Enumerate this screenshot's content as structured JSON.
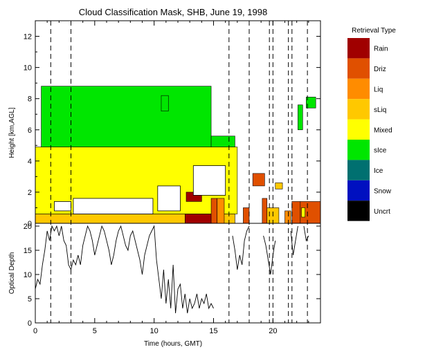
{
  "chart_data": [
    {
      "type": "heatmap",
      "title": "Cloud Classification Mask, SHB, June 19, 1998",
      "xlabel": "",
      "ylabel": "Height [km,AGL]",
      "xlim": [
        0,
        24
      ],
      "ylim": [
        0,
        13
      ],
      "yticks": [
        "0",
        "2",
        "4",
        "6",
        "8",
        "10",
        "12"
      ],
      "grid": false,
      "legend": {
        "title": "Retrieval Type",
        "placement": "right",
        "entries": [
          {
            "label": "Rain",
            "color": "#a00000"
          },
          {
            "label": "Driz",
            "color": "#e05000"
          },
          {
            "label": "Liq",
            "color": "#ff8c00"
          },
          {
            "label": "sLiq",
            "color": "#ffc800"
          },
          {
            "label": "Mixed",
            "color": "#ffff00"
          },
          {
            "label": "sIce",
            "color": "#00e600"
          },
          {
            "label": "Ice",
            "color": "#007070"
          },
          {
            "label": "Snow",
            "color": "#0010c0"
          },
          {
            "label": "Uncrt",
            "color": "#000000"
          }
        ]
      },
      "regions": [
        {
          "class": "sLiq",
          "color": "#ffc800",
          "t0": 0.0,
          "t1": 16.8,
          "h0": 0.0,
          "h1": 0.6
        },
        {
          "class": "Mixed",
          "color": "#ffff00",
          "t0": 0.0,
          "t1": 17.0,
          "h0": 0.6,
          "h1": 4.9
        },
        {
          "class": "sIce",
          "color": "#00e600",
          "t0": 0.5,
          "t1": 14.8,
          "h0": 4.9,
          "h1": 8.8
        },
        {
          "class": "sIce",
          "color": "#00e600",
          "t0": 14.8,
          "t1": 16.8,
          "h0": 4.9,
          "h1": 5.6
        },
        {
          "class": "sIce",
          "color": "#00e600",
          "t0": 10.6,
          "t1": 11.2,
          "h0": 7.2,
          "h1": 8.2
        },
        {
          "class": "sIce",
          "color": "#00e600",
          "t0": 22.1,
          "t1": 22.5,
          "h0": 6.0,
          "h1": 7.6
        },
        {
          "class": "sIce",
          "color": "#00e600",
          "t0": 22.8,
          "t1": 23.6,
          "h0": 7.4,
          "h1": 8.1
        },
        {
          "class": "Rain",
          "color": "#a00000",
          "t0": 12.6,
          "t1": 14.8,
          "h0": 0.0,
          "h1": 0.6
        },
        {
          "class": "Rain",
          "color": "#a00000",
          "t0": 12.7,
          "t1": 14.0,
          "h0": 1.4,
          "h1": 2.0
        },
        {
          "class": "Driz",
          "color": "#e05000",
          "t0": 14.8,
          "t1": 15.3,
          "h0": 0.0,
          "h1": 1.6
        },
        {
          "class": "Liq",
          "color": "#ff8c00",
          "t0": 15.3,
          "t1": 15.9,
          "h0": 0.0,
          "h1": 1.6
        },
        {
          "class": "Driz",
          "color": "#e05000",
          "t0": 17.5,
          "t1": 18.0,
          "h0": 0.0,
          "h1": 1.0
        },
        {
          "class": "Driz",
          "color": "#e05000",
          "t0": 18.3,
          "t1": 19.3,
          "h0": 2.4,
          "h1": 3.2
        },
        {
          "class": "Driz",
          "color": "#e05000",
          "t0": 19.1,
          "t1": 19.5,
          "h0": 0.0,
          "h1": 1.6
        },
        {
          "class": "sLiq",
          "color": "#ffc800",
          "t0": 19.5,
          "t1": 20.5,
          "h0": 0.0,
          "h1": 1.0
        },
        {
          "class": "Liq",
          "color": "#ff8c00",
          "t0": 21.0,
          "t1": 21.5,
          "h0": 0.0,
          "h1": 0.8
        },
        {
          "class": "Driz",
          "color": "#e05000",
          "t0": 21.6,
          "t1": 22.3,
          "h0": 0.0,
          "h1": 1.4
        },
        {
          "class": "Driz",
          "color": "#e05000",
          "t0": 22.3,
          "t1": 24.0,
          "h0": 0.0,
          "h1": 1.4
        },
        {
          "class": "sLiq",
          "color": "#ffc800",
          "t0": 20.2,
          "t1": 20.8,
          "h0": 2.2,
          "h1": 2.6
        },
        {
          "class": "Mixed",
          "color": "#ffff00",
          "t0": 22.4,
          "t1": 22.7,
          "h0": 0.4,
          "h1": 1.0
        }
      ],
      "gaps": [
        {
          "t0": 1.6,
          "t1": 3.0,
          "h0": 0.8,
          "h1": 1.4
        },
        {
          "t0": 3.2,
          "t1": 9.9,
          "h0": 0.6,
          "h1": 1.6
        },
        {
          "t0": 10.3,
          "t1": 12.2,
          "h0": 0.8,
          "h1": 2.4
        },
        {
          "t0": 13.3,
          "t1": 16.0,
          "h0": 1.8,
          "h1": 3.7
        }
      ],
      "dashed_lines_x": [
        1.3,
        3.0,
        16.3,
        18.0,
        19.7,
        20.0,
        21.3,
        21.6,
        22.9
      ]
    },
    {
      "type": "line",
      "xlabel": "Time (hours, GMT)",
      "ylabel": "Optical Depth",
      "xlim": [
        0,
        24
      ],
      "ylim": [
        0,
        20
      ],
      "xticks": [
        "0",
        "5",
        "10",
        "15",
        "20"
      ],
      "yticks": [
        "0",
        "5",
        "10",
        "15",
        "20"
      ],
      "series": [
        {
          "x": [
            0.0,
            0.2,
            0.4,
            0.6,
            0.8,
            1.0,
            1.2,
            1.4,
            1.6,
            1.8,
            2.0,
            2.2,
            2.4,
            2.6,
            2.8,
            3.0,
            3.2,
            3.4,
            3.6,
            3.8,
            4.0,
            4.2,
            4.4,
            4.6,
            4.8,
            5.0,
            5.2,
            5.4,
            5.6,
            5.8,
            6.0,
            6.2,
            6.4,
            6.6,
            6.8,
            7.0,
            7.2,
            7.4,
            7.6,
            7.8,
            8.0,
            8.2,
            8.4,
            8.6,
            8.8,
            9.0,
            9.2,
            9.4,
            9.6,
            9.8,
            10.0,
            10.2,
            10.4,
            10.6,
            10.8,
            11.0,
            11.2,
            11.4,
            11.6,
            11.8,
            12.0,
            12.2,
            12.4,
            12.6,
            12.8,
            13.0,
            13.2,
            13.4,
            13.6,
            13.8,
            14.0,
            14.2,
            14.4,
            14.6,
            14.8,
            15.0
          ],
          "y": [
            7,
            9,
            8,
            12,
            15,
            19,
            17,
            20,
            19,
            20,
            18,
            20,
            17,
            16,
            12,
            11,
            13,
            12,
            14,
            12,
            16,
            18,
            20,
            19,
            17,
            14,
            16,
            18,
            20,
            19,
            17,
            15,
            12,
            14,
            17,
            19,
            20,
            18,
            16,
            15,
            18,
            19,
            17,
            15,
            13,
            10,
            14,
            16,
            18,
            19,
            20,
            13,
            9,
            5,
            11,
            4,
            9,
            3,
            12,
            2,
            7,
            8,
            3,
            6,
            2,
            5,
            3,
            4,
            6,
            3,
            5,
            4,
            6,
            3,
            4,
            3
          ]
        },
        {
          "x": [
            16.6,
            16.8,
            17.0,
            17.2,
            17.4,
            17.6,
            17.8,
            18.0
          ],
          "y": [
            18,
            15,
            11,
            14,
            12,
            17,
            19,
            20
          ]
        },
        {
          "x": [
            19.2,
            19.4,
            19.6,
            19.8,
            20.0,
            20.2
          ],
          "y": [
            18,
            16,
            13,
            10,
            14,
            17
          ]
        },
        {
          "x": [
            21.5,
            21.7,
            21.9,
            22.1
          ],
          "y": [
            19,
            14,
            17,
            20
          ]
        },
        {
          "x": [
            22.6,
            22.8,
            23.0
          ],
          "y": [
            20,
            17,
            18
          ]
        }
      ]
    }
  ]
}
